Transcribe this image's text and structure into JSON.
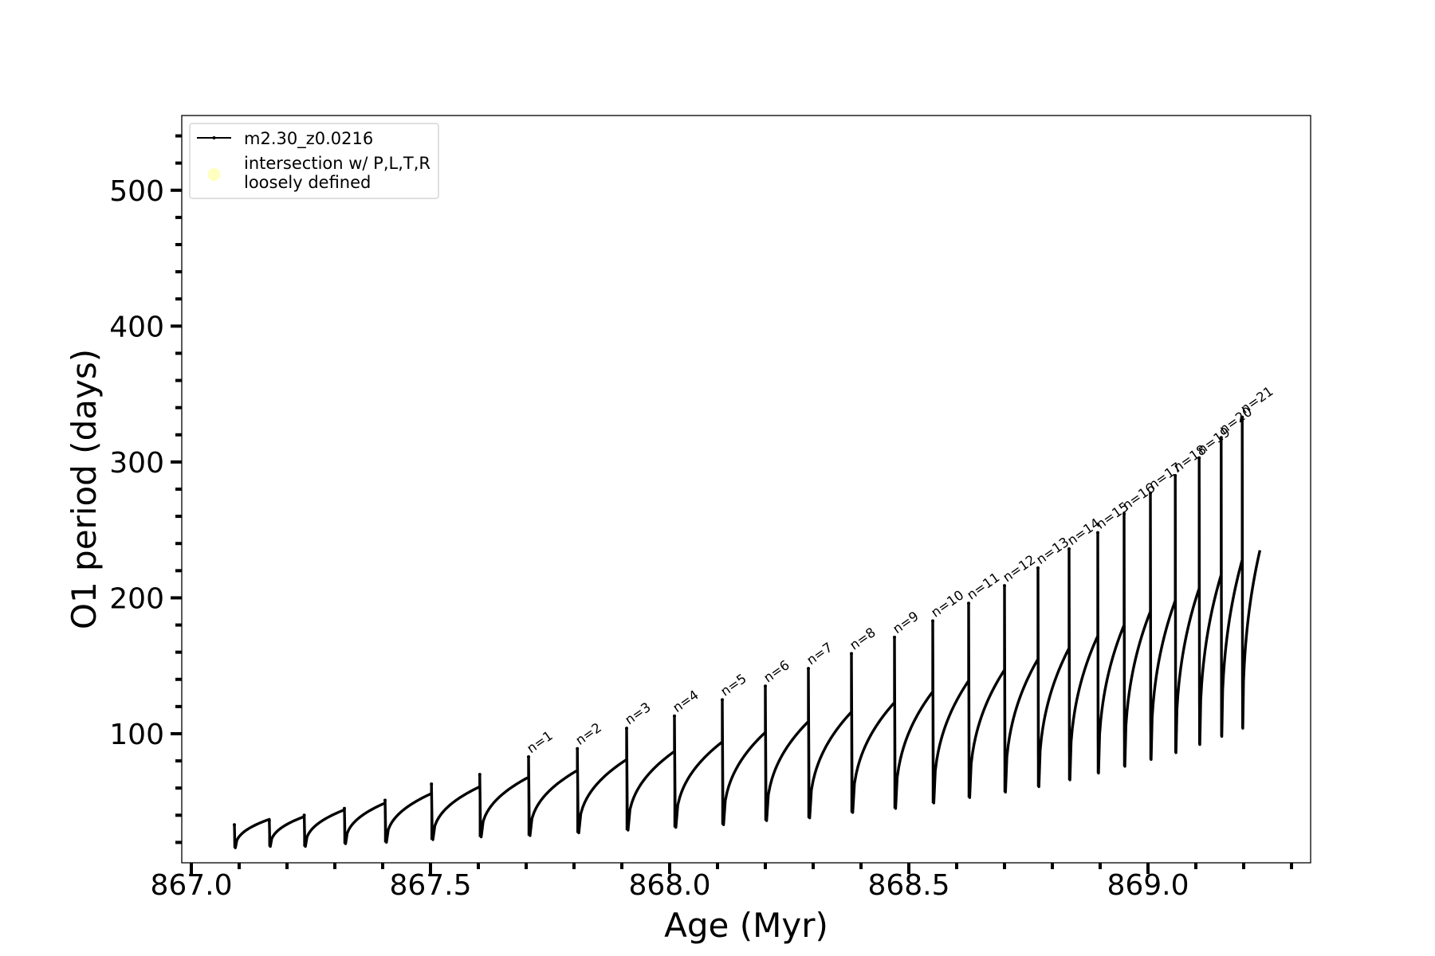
{
  "chart_data": {
    "type": "line",
    "xlabel": "Age (Myr)",
    "ylabel": "O1 period (days)",
    "xlim": [
      866.98,
      869.34
    ],
    "ylim": [
      5,
      555
    ],
    "x_ticks": [
      867.0,
      867.5,
      868.0,
      868.5,
      869.0
    ],
    "x_tick_labels": [
      "867.0",
      "867.5",
      "868.0",
      "868.5",
      "869.0"
    ],
    "x_minor_step": 0.1,
    "y_ticks": [
      100,
      200,
      300,
      400,
      500
    ],
    "y_tick_labels": [
      "100",
      "200",
      "300",
      "400",
      "500"
    ],
    "y_minor_step": 20,
    "grid": false,
    "legend": {
      "placement": "upper-left",
      "entries": [
        {
          "label": "m2.30_z0.0216",
          "marker": "line",
          "color": "#000000"
        },
        {
          "label": "intersection w/ P,L,T,R\nloosely defined",
          "marker": "circle",
          "color": "#ffffc0"
        }
      ]
    },
    "series": [
      {
        "name": "m2.30_z0.0216",
        "color": "#000000",
        "cycle_spikes": [
          {
            "x": 867.09,
            "spike": 33,
            "min": 16,
            "end": 37
          },
          {
            "x": 867.163,
            "spike": 36,
            "min": 17,
            "end": 39
          },
          {
            "x": 867.236,
            "spike": 40,
            "min": 17,
            "end": 44
          },
          {
            "x": 867.32,
            "spike": 45,
            "min": 19,
            "end": 49
          },
          {
            "x": 867.405,
            "spike": 51,
            "min": 20,
            "end": 56
          },
          {
            "x": 867.502,
            "spike": 63,
            "min": 22,
            "end": 61
          },
          {
            "x": 867.603,
            "spike": 70,
            "min": 24,
            "end": 68
          },
          {
            "x": 867.705,
            "spike": 83,
            "min": 25,
            "end": 73
          },
          {
            "x": 867.807,
            "spike": 89,
            "min": 27,
            "end": 81
          },
          {
            "x": 867.91,
            "spike": 104,
            "min": 29,
            "end": 87
          },
          {
            "x": 868.01,
            "spike": 113,
            "min": 31,
            "end": 94
          },
          {
            "x": 868.11,
            "spike": 125,
            "min": 33,
            "end": 101
          },
          {
            "x": 868.2,
            "spike": 135,
            "min": 36,
            "end": 109
          },
          {
            "x": 868.29,
            "spike": 148,
            "min": 38,
            "end": 116
          },
          {
            "x": 868.38,
            "spike": 159,
            "min": 42,
            "end": 123
          },
          {
            "x": 868.47,
            "spike": 171,
            "min": 45,
            "end": 131
          },
          {
            "x": 868.55,
            "spike": 183,
            "min": 49,
            "end": 139
          },
          {
            "x": 868.625,
            "spike": 196,
            "min": 53,
            "end": 147
          },
          {
            "x": 868.7,
            "spike": 209,
            "min": 57,
            "end": 155
          },
          {
            "x": 868.77,
            "spike": 222,
            "min": 61,
            "end": 163
          },
          {
            "x": 868.835,
            "spike": 236,
            "min": 66,
            "end": 172
          },
          {
            "x": 868.895,
            "spike": 248,
            "min": 71,
            "end": 180
          },
          {
            "x": 868.95,
            "spike": 262,
            "min": 76,
            "end": 190
          },
          {
            "x": 869.005,
            "spike": 277,
            "min": 81,
            "end": 198
          },
          {
            "x": 869.057,
            "spike": 290,
            "min": 86,
            "end": 207
          },
          {
            "x": 869.107,
            "spike": 303,
            "min": 92,
            "end": 217
          },
          {
            "x": 869.153,
            "spike": 318,
            "min": 98,
            "end": 228
          },
          {
            "x": 869.197,
            "spike": 333,
            "min": 104,
            "end": 235
          }
        ],
        "last_x": 869.234
      }
    ],
    "annotations": [
      {
        "text": "n=1",
        "x": 867.705
      },
      {
        "text": "n=2",
        "x": 867.807
      },
      {
        "text": "n=3",
        "x": 867.91
      },
      {
        "text": "n=4",
        "x": 868.01
      },
      {
        "text": "n=5",
        "x": 868.11
      },
      {
        "text": "n=6",
        "x": 868.2
      },
      {
        "text": "n=7",
        "x": 868.29
      },
      {
        "text": "n=8",
        "x": 868.38
      },
      {
        "text": "n=9",
        "x": 868.47
      },
      {
        "text": "n=10",
        "x": 868.55
      },
      {
        "text": "n=11",
        "x": 868.625
      },
      {
        "text": "n=12",
        "x": 868.7
      },
      {
        "text": "n=13",
        "x": 868.77
      },
      {
        "text": "n=14",
        "x": 868.835
      },
      {
        "text": "n=15",
        "x": 868.895
      },
      {
        "text": "n=16",
        "x": 868.95
      },
      {
        "text": "n=17",
        "x": 869.005
      },
      {
        "text": "n=18",
        "x": 869.057
      },
      {
        "text": "n=19",
        "x": 869.107
      },
      {
        "text": "n=20",
        "x": 869.153
      },
      {
        "text": "n=21",
        "x": 869.197
      }
    ]
  }
}
